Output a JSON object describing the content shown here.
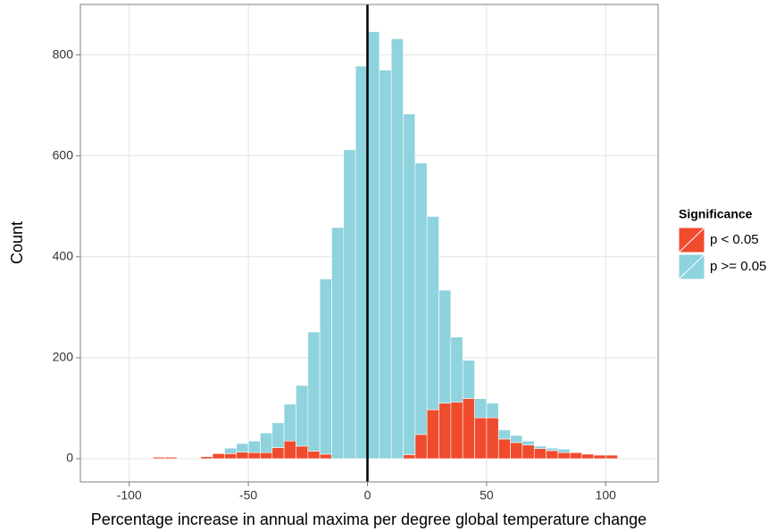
{
  "chart_data": {
    "type": "histogram",
    "x_label": "Percentage increase in annual maxima per degree global temperature change",
    "y_label": "Count",
    "legend_title": "Significance",
    "legend_position": "right",
    "grid": true,
    "vline": 0,
    "bins": [
      -90,
      -85,
      -80,
      -75,
      -70,
      -65,
      -60,
      -55,
      -50,
      -45,
      -40,
      -35,
      -30,
      -25,
      -20,
      -15,
      -10,
      -5,
      0,
      5,
      10,
      15,
      20,
      25,
      30,
      35,
      40,
      45,
      50,
      55,
      60,
      65,
      70,
      75,
      80,
      85,
      90,
      95,
      100,
      105
    ],
    "series": [
      {
        "name": "p < 0.05",
        "color": "#f04b2d",
        "values": [
          3,
          3,
          0,
          0,
          4,
          10,
          10,
          13,
          12,
          12,
          22,
          35,
          25,
          15,
          9,
          0,
          0,
          0,
          0,
          0,
          0,
          8,
          48,
          97,
          110,
          112,
          119,
          81,
          81,
          39,
          32,
          27,
          20,
          16,
          12,
          12,
          9,
          7,
          7
        ]
      },
      {
        "name": "p >= 0.05",
        "color": "#8ed3dd",
        "values": [
          0,
          0,
          0,
          0,
          0,
          0,
          11,
          17,
          23,
          39,
          49,
          73,
          120,
          236,
          347,
          458,
          612,
          778,
          846,
          770,
          832,
          675,
          538,
          383,
          224,
          129,
          76,
          38,
          29,
          18,
          14,
          8,
          5,
          5,
          7,
          0,
          0,
          0,
          0
        ]
      }
    ],
    "xlim": [
      -120.5,
      122
    ],
    "ylim": [
      -46,
      900
    ],
    "xticks": [
      -100,
      -50,
      0,
      50,
      100
    ],
    "yticks": [
      0,
      200,
      400,
      600,
      800
    ]
  }
}
